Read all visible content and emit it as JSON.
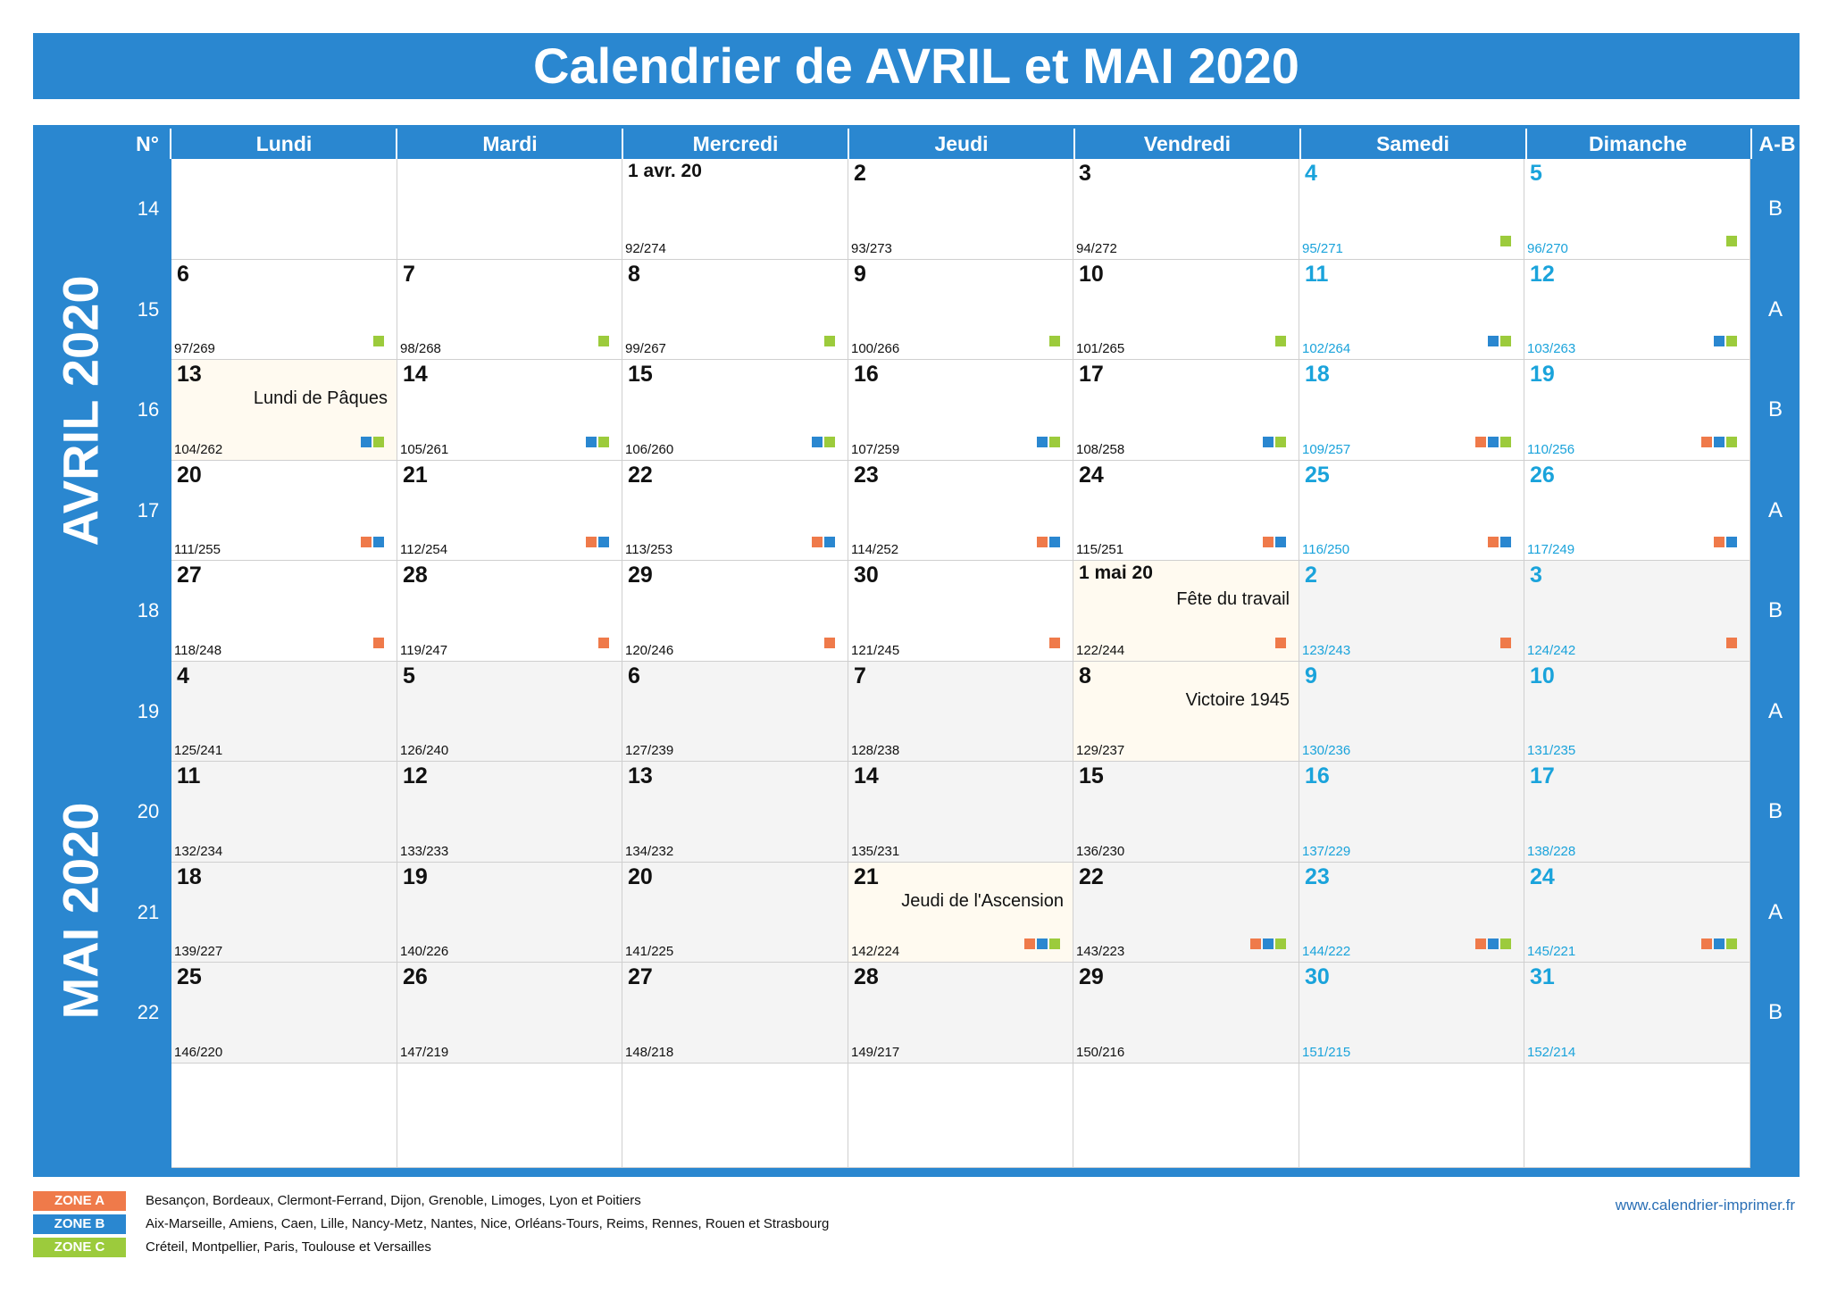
{
  "title": "Calendrier de AVRIL et MAI 2020",
  "header": {
    "num_label": "N°",
    "days": [
      "Lundi",
      "Mardi",
      "Mercredi",
      "Jeudi",
      "Vendredi",
      "Samedi",
      "Dimanche"
    ],
    "ab_label": "A-B"
  },
  "months": {
    "april": "AVRIL 2020",
    "may": "MAI 2020"
  },
  "colors": {
    "primary": "#2a87d0",
    "weekend_text": "#1aa3db",
    "zone_a": "#ef7a4a",
    "zone_b": "#2a87d0",
    "zone_c": "#9ccb3c",
    "holiday_bg": "#fffaf0",
    "may_bg": "#f4f4f4"
  },
  "weeks": [
    {
      "num": "14",
      "ab": "B",
      "days": [
        {
          "empty": true
        },
        {
          "empty": true
        },
        {
          "d": "1 avr. 20",
          "o": "92/274"
        },
        {
          "d": "2",
          "o": "93/273"
        },
        {
          "d": "3",
          "o": "94/272"
        },
        {
          "d": "4",
          "o": "95/271",
          "z": "C"
        },
        {
          "d": "5",
          "o": "96/270",
          "z": "C"
        }
      ]
    },
    {
      "num": "15",
      "ab": "A",
      "days": [
        {
          "d": "6",
          "o": "97/269",
          "z": "C"
        },
        {
          "d": "7",
          "o": "98/268",
          "z": "C"
        },
        {
          "d": "8",
          "o": "99/267",
          "z": "C"
        },
        {
          "d": "9",
          "o": "100/266",
          "z": "C"
        },
        {
          "d": "10",
          "o": "101/265",
          "z": "C"
        },
        {
          "d": "11",
          "o": "102/264",
          "z": "BC"
        },
        {
          "d": "12",
          "o": "103/263",
          "z": "BC"
        }
      ]
    },
    {
      "num": "16",
      "ab": "B",
      "days": [
        {
          "d": "13",
          "o": "104/262",
          "z": "BC",
          "h": "Lundi de Pâques"
        },
        {
          "d": "14",
          "o": "105/261",
          "z": "BC"
        },
        {
          "d": "15",
          "o": "106/260",
          "z": "BC"
        },
        {
          "d": "16",
          "o": "107/259",
          "z": "BC"
        },
        {
          "d": "17",
          "o": "108/258",
          "z": "BC"
        },
        {
          "d": "18",
          "o": "109/257",
          "z": "ABC"
        },
        {
          "d": "19",
          "o": "110/256",
          "z": "ABC"
        }
      ]
    },
    {
      "num": "17",
      "ab": "A",
      "days": [
        {
          "d": "20",
          "o": "111/255",
          "z": "AB"
        },
        {
          "d": "21",
          "o": "112/254",
          "z": "AB"
        },
        {
          "d": "22",
          "o": "113/253",
          "z": "AB"
        },
        {
          "d": "23",
          "o": "114/252",
          "z": "AB"
        },
        {
          "d": "24",
          "o": "115/251",
          "z": "AB"
        },
        {
          "d": "25",
          "o": "116/250",
          "z": "AB"
        },
        {
          "d": "26",
          "o": "117/249",
          "z": "AB"
        }
      ]
    },
    {
      "num": "18",
      "ab": "B",
      "days": [
        {
          "d": "27",
          "o": "118/248",
          "z": "A"
        },
        {
          "d": "28",
          "o": "119/247",
          "z": "A"
        },
        {
          "d": "29",
          "o": "120/246",
          "z": "A"
        },
        {
          "d": "30",
          "o": "121/245",
          "z": "A"
        },
        {
          "d": "1 mai 20",
          "o": "122/244",
          "z": "A",
          "h": "Fête du travail",
          "may": true
        },
        {
          "d": "2",
          "o": "123/243",
          "z": "A",
          "may": true
        },
        {
          "d": "3",
          "o": "124/242",
          "z": "A",
          "may": true
        }
      ]
    },
    {
      "num": "19",
      "ab": "A",
      "days": [
        {
          "d": "4",
          "o": "125/241",
          "may": true
        },
        {
          "d": "5",
          "o": "126/240",
          "may": true
        },
        {
          "d": "6",
          "o": "127/239",
          "may": true
        },
        {
          "d": "7",
          "o": "128/238",
          "may": true
        },
        {
          "d": "8",
          "o": "129/237",
          "h": "Victoire 1945",
          "may": true
        },
        {
          "d": "9",
          "o": "130/236",
          "may": true
        },
        {
          "d": "10",
          "o": "131/235",
          "may": true
        }
      ]
    },
    {
      "num": "20",
      "ab": "B",
      "days": [
        {
          "d": "11",
          "o": "132/234",
          "may": true
        },
        {
          "d": "12",
          "o": "133/233",
          "may": true
        },
        {
          "d": "13",
          "o": "134/232",
          "may": true
        },
        {
          "d": "14",
          "o": "135/231",
          "may": true
        },
        {
          "d": "15",
          "o": "136/230",
          "may": true
        },
        {
          "d": "16",
          "o": "137/229",
          "may": true
        },
        {
          "d": "17",
          "o": "138/228",
          "may": true
        }
      ]
    },
    {
      "num": "21",
      "ab": "A",
      "days": [
        {
          "d": "18",
          "o": "139/227",
          "may": true
        },
        {
          "d": "19",
          "o": "140/226",
          "may": true
        },
        {
          "d": "20",
          "o": "141/225",
          "may": true
        },
        {
          "d": "21",
          "o": "142/224",
          "z": "ABC",
          "h": "Jeudi de l'Ascension",
          "may": true
        },
        {
          "d": "22",
          "o": "143/223",
          "z": "ABC",
          "may": true
        },
        {
          "d": "23",
          "o": "144/222",
          "z": "ABC",
          "may": true
        },
        {
          "d": "24",
          "o": "145/221",
          "z": "ABC",
          "may": true
        }
      ]
    },
    {
      "num": "22",
      "ab": "B",
      "days": [
        {
          "d": "25",
          "o": "146/220",
          "may": true
        },
        {
          "d": "26",
          "o": "147/219",
          "may": true
        },
        {
          "d": "27",
          "o": "148/218",
          "may": true
        },
        {
          "d": "28",
          "o": "149/217",
          "may": true
        },
        {
          "d": "29",
          "o": "150/216",
          "may": true
        },
        {
          "d": "30",
          "o": "151/215",
          "may": true
        },
        {
          "d": "31",
          "o": "152/214",
          "may": true
        }
      ]
    }
  ],
  "legend": [
    {
      "label": "ZONE A",
      "text": "Besançon, Bordeaux, Clermont-Ferrand, Dijon, Grenoble, Limoges, Lyon et Poitiers"
    },
    {
      "label": "ZONE B",
      "text": "Aix-Marseille, Amiens, Caen, Lille, Nancy-Metz, Nantes, Nice, Orléans-Tours, Reims, Rennes, Rouen et Strasbourg"
    },
    {
      "label": "ZONE C",
      "text": "Créteil, Montpellier, Paris, Toulouse et Versailles"
    }
  ],
  "website": "www.calendrier-imprimer.fr"
}
